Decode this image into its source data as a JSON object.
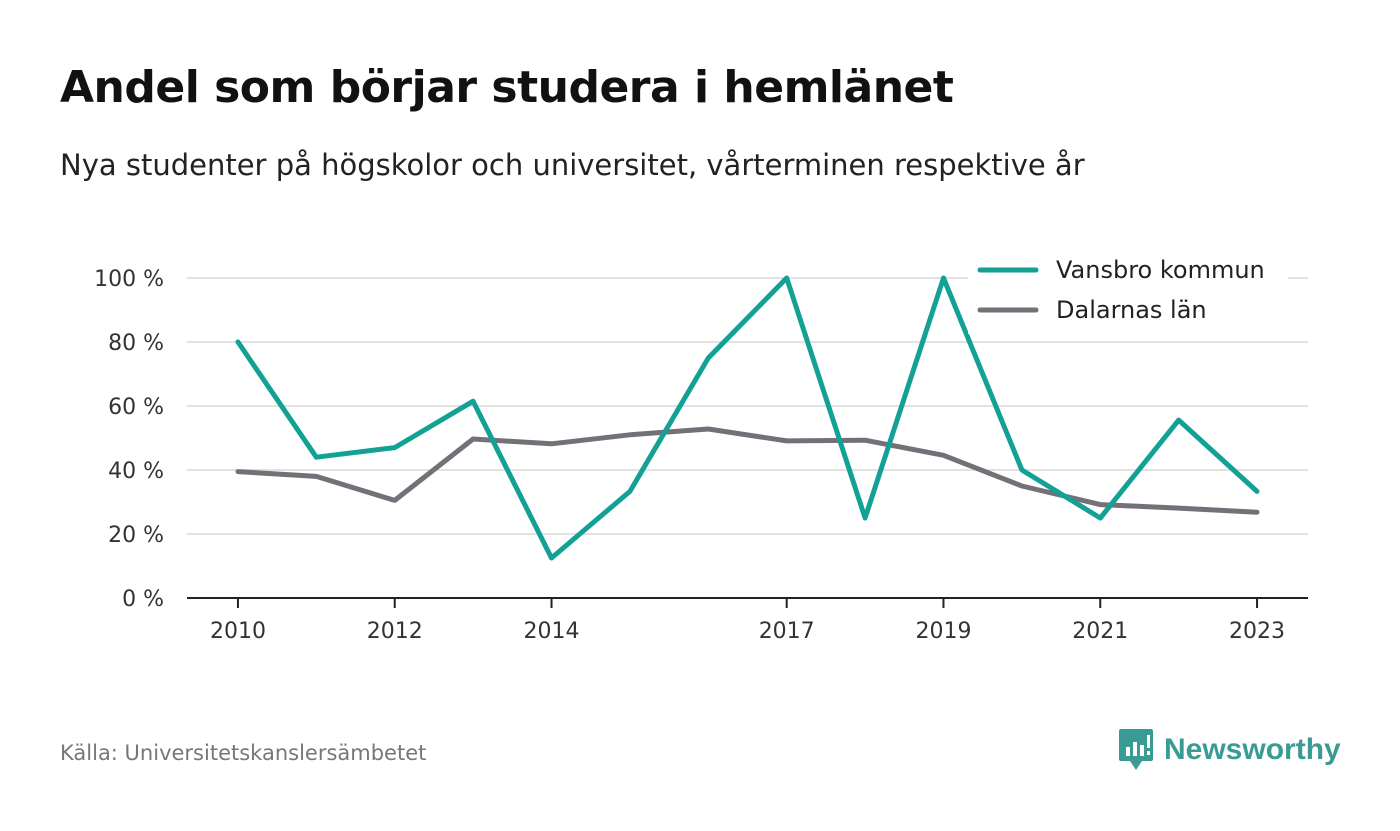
{
  "title": "Andel som börjar studera i hemlänet",
  "subtitle": "Nya studenter på högskolor och universitet, vårterminen respektive år",
  "source": "Källa: Universitetskanslersämbetet",
  "brand": {
    "name": "Newsworthy",
    "color": "#3a9b95",
    "icon": "newsworthy-logo-icon"
  },
  "chart_data": {
    "type": "line",
    "x": [
      2010,
      2011,
      2012,
      2013,
      2014,
      2015,
      2016,
      2017,
      2018,
      2019,
      2020,
      2021,
      2022,
      2023
    ],
    "x_ticks": [
      2010,
      2012,
      2014,
      2017,
      2019,
      2021,
      2023
    ],
    "y_ticks": [
      0,
      20,
      40,
      60,
      80,
      100
    ],
    "y_tick_suffix": " %",
    "ylim": [
      0,
      100
    ],
    "xlim": [
      2009.35,
      2023.65
    ],
    "grid": true,
    "legend_position": "top-right",
    "series": [
      {
        "name": "Vansbro kommun",
        "color": "#13a196",
        "values": [
          80,
          44,
          47,
          61.5,
          12.5,
          33.3,
          75,
          100,
          25,
          100,
          40,
          25,
          55.6,
          33.3
        ]
      },
      {
        "name": "Dalarnas län",
        "color": "#737078",
        "values": [
          39.5,
          38,
          30.5,
          49.7,
          48.2,
          51,
          52.8,
          49.1,
          49.3,
          44.6,
          35,
          29.2,
          28.1,
          26.8
        ]
      }
    ]
  }
}
